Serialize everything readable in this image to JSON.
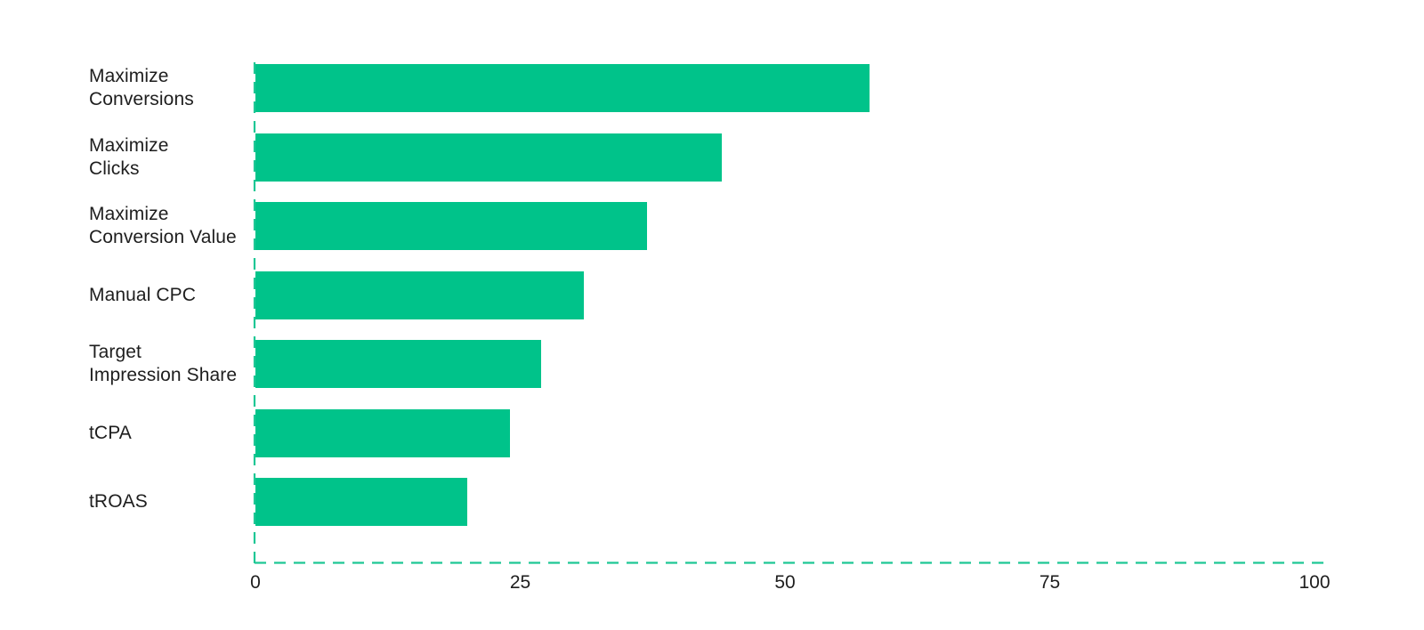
{
  "page": {
    "background": "#ffffff"
  },
  "colors": {
    "bar": "#00C38A",
    "axis_dash": "#1EC795",
    "text": "#1E1E1E"
  },
  "chart_data": {
    "type": "bar",
    "orientation": "horizontal",
    "title": "",
    "xlabel": "",
    "ylabel": "",
    "legend": null,
    "grid": false,
    "axis_style": "dashed",
    "categories": [
      "Maximize Conversions",
      "Maximize Clicks",
      "Maximize Conversion Value",
      "Manual CPC",
      "Target Impression Share",
      "tCPA",
      "tROAS"
    ],
    "category_lines": [
      [
        "Maximize",
        "Conversions"
      ],
      [
        "Maximize",
        "Clicks"
      ],
      [
        "Maximize",
        "Conversion Value"
      ],
      [
        "Manual CPC"
      ],
      [
        "Target",
        "Impression Share"
      ],
      [
        "tCPA"
      ],
      [
        "tROAS"
      ]
    ],
    "values": [
      58,
      44,
      37,
      31,
      27,
      24,
      20
    ],
    "x_ticks": [
      "0",
      "25",
      "50",
      "75",
      "100"
    ],
    "x_tick_values": [
      0,
      25,
      50,
      75,
      100
    ],
    "xlim": [
      0,
      100
    ]
  }
}
